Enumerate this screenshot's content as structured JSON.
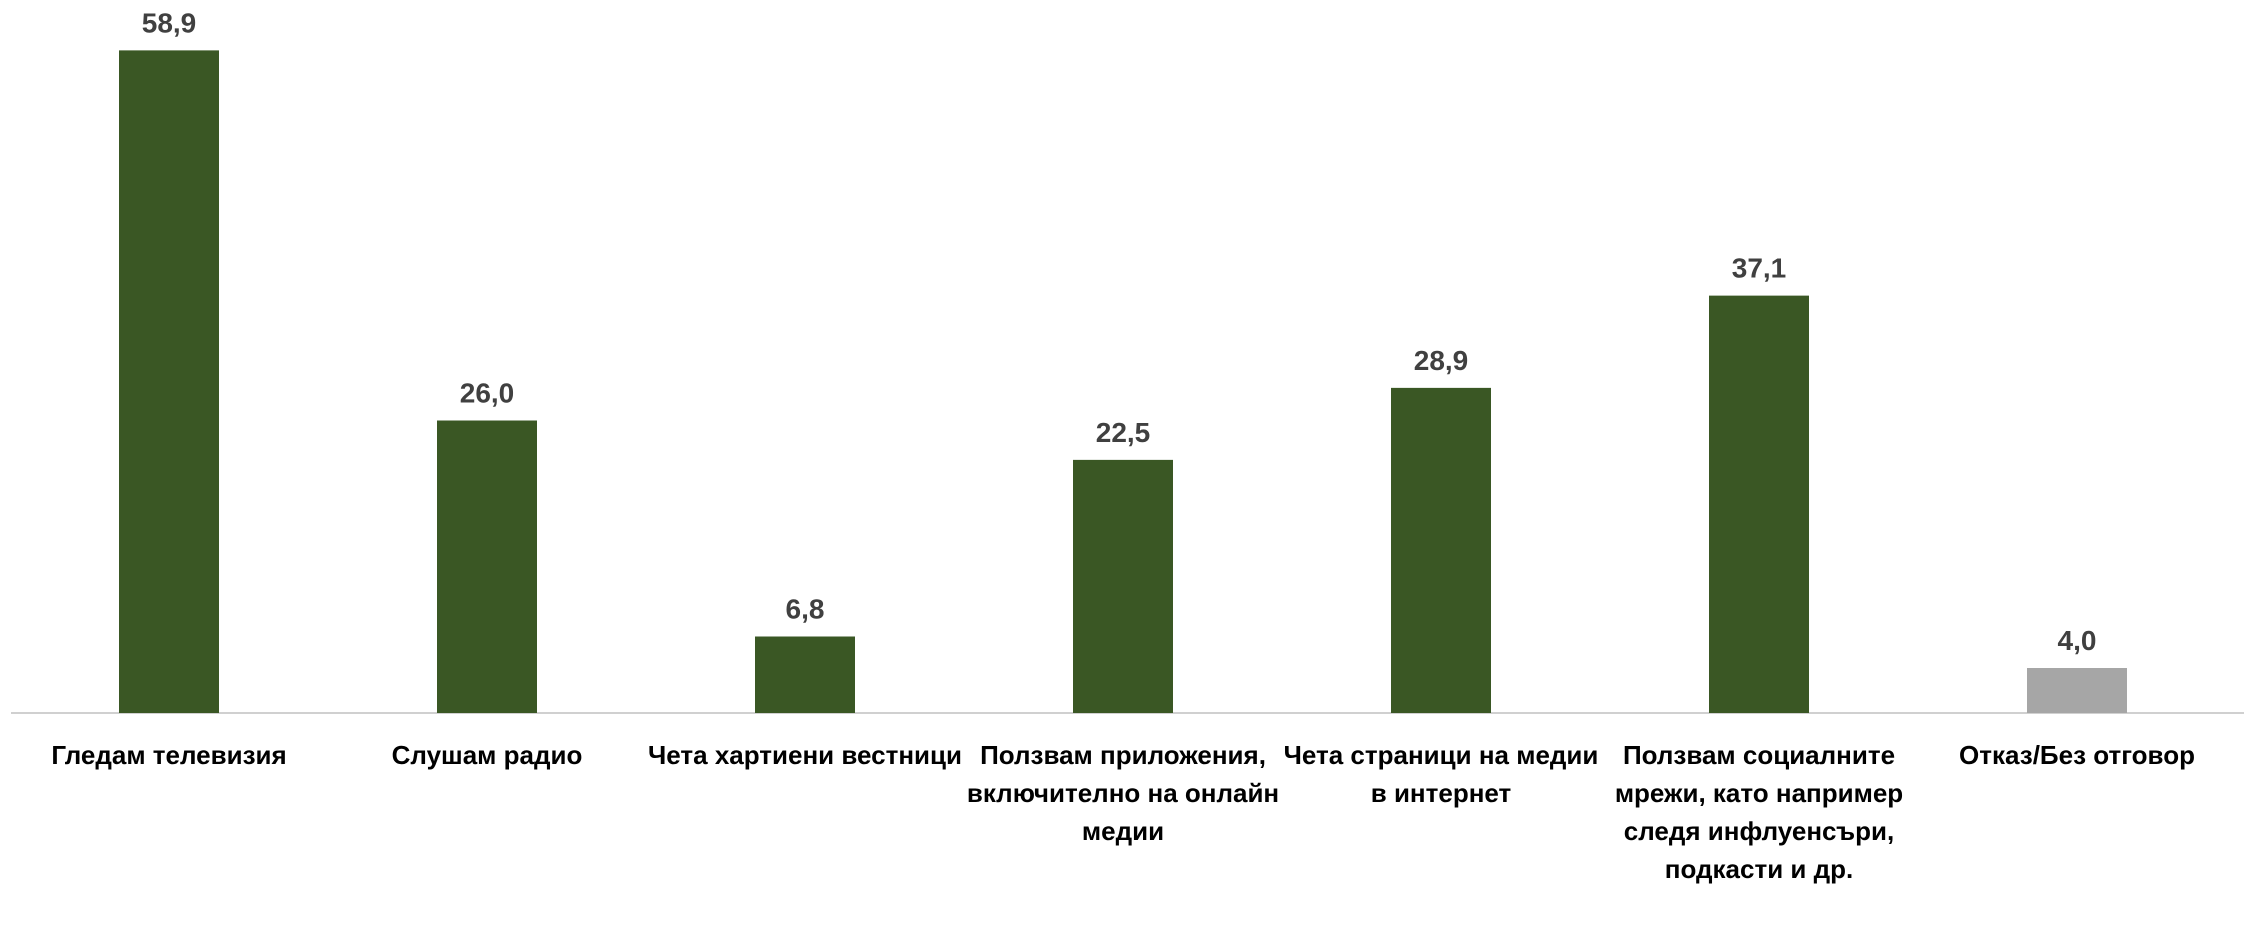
{
  "chart_data": {
    "type": "bar",
    "categories": [
      "Гледам телевизия",
      "Слушам радио",
      "Чета хартиени вестници",
      "Ползвам приложения, включително на онлайн медии",
      "Чета страници на медии в интернет",
      "Ползвам социалните мрежи, като например следя инфлуенсъри, подкасти и др.",
      "Отказ/Без отговор"
    ],
    "values": [
      58.9,
      26.0,
      6.8,
      22.5,
      28.9,
      37.1,
      4.0
    ],
    "value_labels": [
      "58,9",
      "26,0",
      "6,8",
      "22,5",
      "28,9",
      "37,1",
      "4,0"
    ],
    "colors": [
      "#3a5724",
      "#3a5724",
      "#3a5724",
      "#3a5724",
      "#3a5724",
      "#3a5724",
      "#a6a6a6"
    ]
  }
}
